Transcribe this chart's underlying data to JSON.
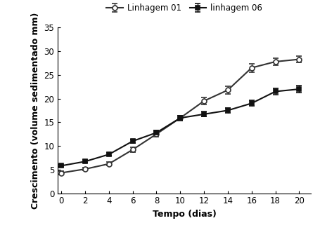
{
  "x": [
    0,
    2,
    4,
    6,
    8,
    10,
    12,
    14,
    16,
    18,
    20
  ],
  "linhagem01_y": [
    4.3,
    5.1,
    6.2,
    9.2,
    12.5,
    15.9,
    19.5,
    21.8,
    26.5,
    27.8,
    28.3
  ],
  "linhagem01_err": [
    0.3,
    0.3,
    0.4,
    0.5,
    0.5,
    0.5,
    0.8,
    0.8,
    0.9,
    0.8,
    0.7
  ],
  "linhagem06_y": [
    5.8,
    6.7,
    8.2,
    11.0,
    12.8,
    15.9,
    16.7,
    17.5,
    19.0,
    21.5,
    22.0
  ],
  "linhagem06_err": [
    0.2,
    0.3,
    0.3,
    0.4,
    0.5,
    0.5,
    0.5,
    0.5,
    0.6,
    0.7,
    0.7
  ],
  "xlabel": "Tempo (dias)",
  "ylabel": "Crescimento (volume sedimentado mm)",
  "legend_linhagem01": "Linhagem 01",
  "legend_linhagem06": "linhagem 06",
  "xlim": [
    -0.3,
    21
  ],
  "ylim": [
    0,
    35
  ],
  "yticks": [
    0,
    5,
    10,
    15,
    20,
    25,
    30,
    35
  ],
  "xticks": [
    0,
    2,
    4,
    6,
    8,
    10,
    12,
    14,
    16,
    18,
    20
  ],
  "color_linhagem01": "#333333",
  "color_linhagem06": "#111111",
  "marker_linhagem01": "o",
  "marker_linhagem06": "s",
  "linewidth": 1.5,
  "markersize": 5,
  "axis_fontsize": 9,
  "tick_fontsize": 8.5,
  "legend_fontsize": 8.5,
  "bg_color": "#ffffff"
}
